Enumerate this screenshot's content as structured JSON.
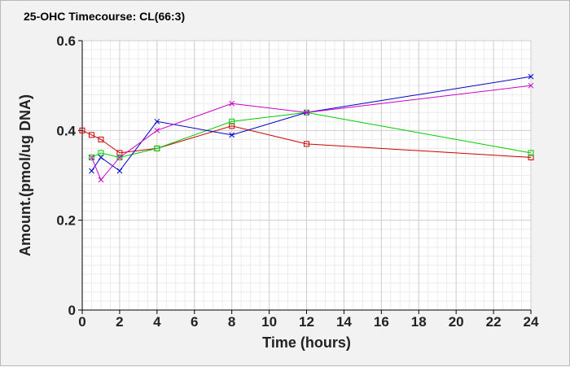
{
  "chart_data": {
    "type": "line",
    "title": "25-OHC Timecourse: CL(66:3)",
    "xlabel": "Time (hours)",
    "ylabel": "Amount.(pmol/ug DNA)",
    "xlim": [
      0,
      24
    ],
    "ylim": [
      0,
      0.6
    ],
    "x_ticks": [
      0,
      2,
      4,
      6,
      8,
      10,
      12,
      14,
      16,
      18,
      20,
      22,
      24
    ],
    "y_ticks": [
      0,
      0.2,
      0.4,
      0.6
    ],
    "x_tick_labels": [
      "0",
      "2",
      "4",
      "6",
      "8",
      "10",
      "12",
      "14",
      "16",
      "18",
      "20",
      "22",
      "24"
    ],
    "y_tick_labels": [
      "0",
      "0.2",
      "0.4",
      "0.6"
    ],
    "grid": true,
    "series": [
      {
        "color": "#cc0000",
        "marker": "square",
        "x": [
          0,
          0.5,
          1,
          2,
          4,
          8,
          12,
          24
        ],
        "y": [
          0.4,
          0.39,
          0.38,
          0.35,
          0.36,
          0.41,
          0.37,
          0.34
        ]
      },
      {
        "color": "#00cc00",
        "marker": "square",
        "x": [
          0.5,
          1,
          2,
          4,
          8,
          12,
          24
        ],
        "y": [
          0.34,
          0.35,
          0.34,
          0.36,
          0.42,
          0.44,
          0.35
        ]
      },
      {
        "color": "#0000cc",
        "marker": "x",
        "x": [
          0.5,
          1,
          2,
          4,
          8,
          12,
          24
        ],
        "y": [
          0.31,
          0.34,
          0.31,
          0.42,
          0.39,
          0.44,
          0.52
        ]
      },
      {
        "color": "#cc00cc",
        "marker": "x",
        "x": [
          0.5,
          1,
          2,
          4,
          8,
          12,
          24
        ],
        "y": [
          0.34,
          0.29,
          0.34,
          0.4,
          0.46,
          0.44,
          0.5
        ]
      }
    ]
  }
}
